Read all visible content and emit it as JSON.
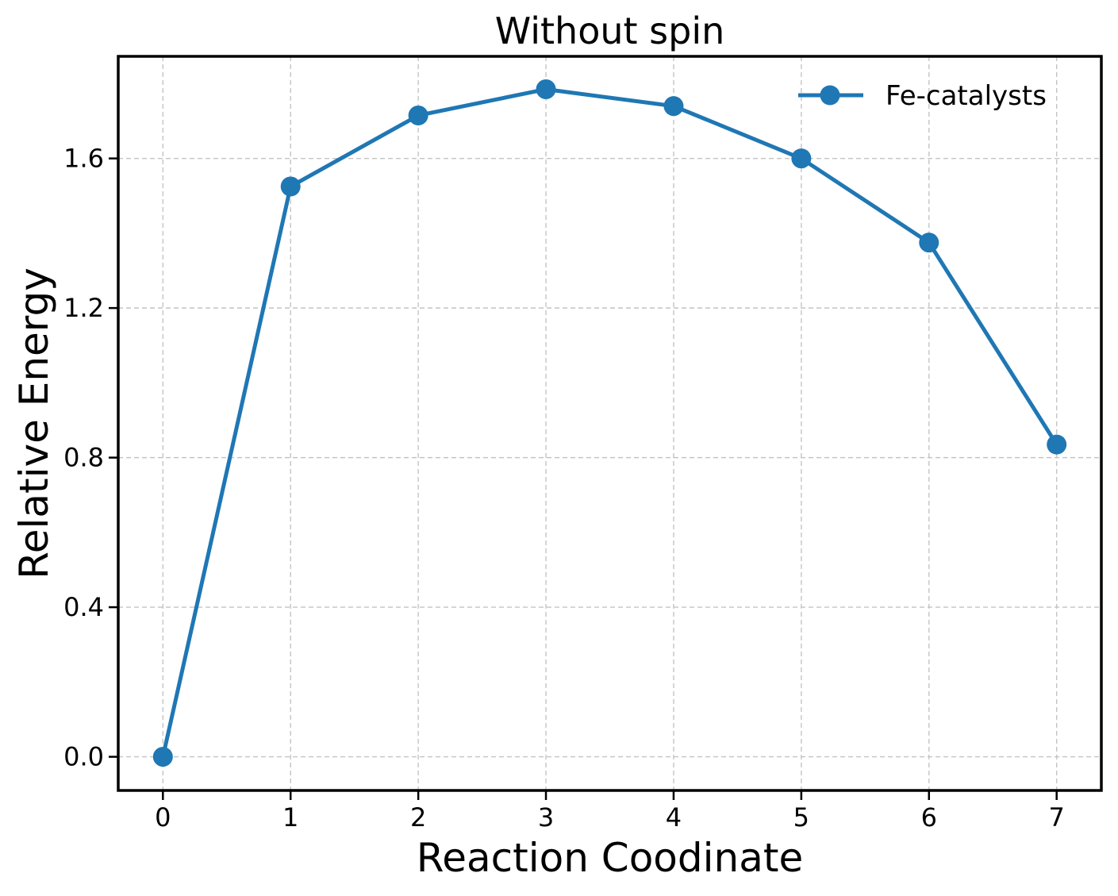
{
  "chart_data": {
    "type": "line",
    "title": "Without spin",
    "xlabel": "Reaction Coodinate",
    "ylabel": "Relative Energy",
    "x": [
      0,
      1,
      2,
      3,
      4,
      5,
      6,
      7
    ],
    "series": [
      {
        "name": "Fe-catalysts",
        "values": [
          0.0,
          1.525,
          1.715,
          1.785,
          1.74,
          1.6,
          1.375,
          0.835
        ],
        "color": "#1f77b4",
        "marker": "circle"
      }
    ],
    "xticks": [
      0,
      1,
      2,
      3,
      4,
      5,
      6,
      7
    ],
    "xtick_labels": [
      "0",
      "1",
      "2",
      "3",
      "4",
      "5",
      "6",
      "7"
    ],
    "yticks": [
      0.0,
      0.4,
      0.8,
      1.2,
      1.6
    ],
    "ytick_labels": [
      "0.0",
      "0.4",
      "0.8",
      "1.2",
      "1.6"
    ],
    "xlim": [
      -0.35,
      7.35
    ],
    "ylim": [
      -0.09,
      1.873
    ],
    "grid": true,
    "grid_style": "dashed",
    "legend_position": "top-right"
  }
}
